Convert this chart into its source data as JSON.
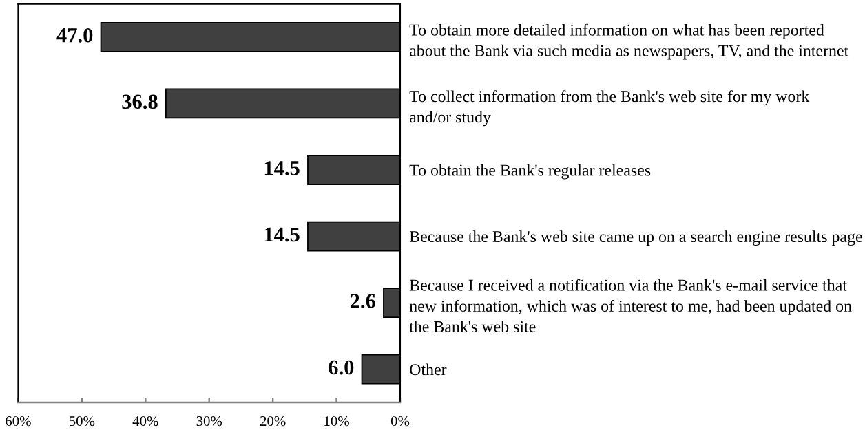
{
  "chart_data": {
    "type": "bar",
    "orientation": "horizontal",
    "categories": [
      "To obtain more detailed information on what has been reported\nabout the Bank via such media as newspapers, TV, and the internet",
      "To collect information from the Bank's web site for my work\nand/or study",
      "To obtain the Bank's regular releases",
      "Because the Bank's web site came up on a search engine results page",
      "Because I received a notification via the Bank's e-mail service that\nnew information, which was of interest to me, had been updated on\nthe Bank's web site",
      "Other"
    ],
    "values": [
      47.0,
      36.8,
      14.5,
      14.5,
      2.6,
      6.0
    ],
    "color": "#404040",
    "value_labels": [
      "47.0",
      "36.8",
      "14.5",
      "14.5",
      "2.6",
      "6.0"
    ],
    "xlim": [
      60,
      0
    ],
    "xticks": [
      {
        "value": 60,
        "label": "60%"
      },
      {
        "value": 50,
        "label": "50%"
      },
      {
        "value": 40,
        "label": "40%"
      },
      {
        "value": 30,
        "label": "30%"
      },
      {
        "value": 20,
        "label": "20%"
      },
      {
        "value": 10,
        "label": "10%"
      },
      {
        "value": 0,
        "label": "0%"
      }
    ],
    "grid": false
  }
}
